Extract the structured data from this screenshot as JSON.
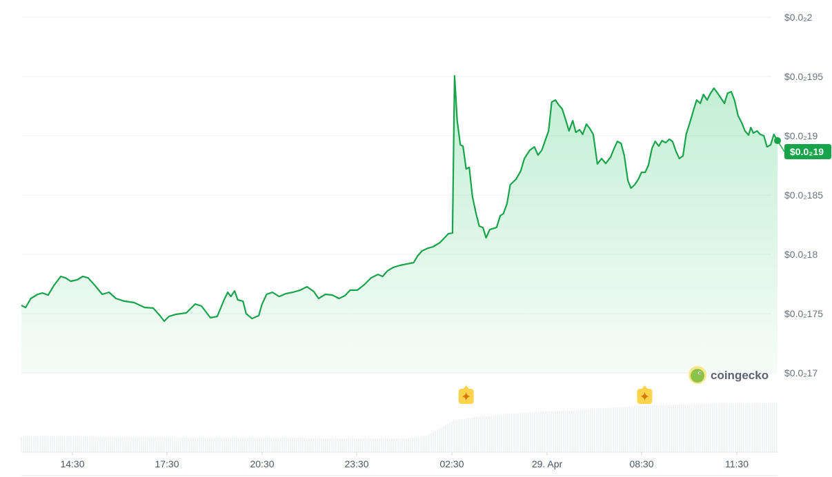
{
  "chart_data": {
    "type": "area",
    "title": "",
    "xlabel": "",
    "ylabel": "",
    "ylim": [
      0.0017,
      0.002
    ],
    "grid": true,
    "y_ticks": [
      {
        "value": 0.002,
        "label": "$0.0₂2"
      },
      {
        "value": 0.00195,
        "label": "$0.0₂195"
      },
      {
        "value": 0.0019,
        "label": "$0.0₂19"
      },
      {
        "value": 0.00185,
        "label": "$0.0₂185"
      },
      {
        "value": 0.0018,
        "label": "$0.0₂18"
      },
      {
        "value": 0.00175,
        "label": "$0.0₂175"
      },
      {
        "value": 0.0017,
        "label": "$0.0₂17"
      }
    ],
    "x_ticks": [
      "14:30",
      "17:30",
      "20:30",
      "23:30",
      "02:30",
      "29. Apr",
      "08:30",
      "11:30"
    ],
    "current_price_label": "$0.0₂19",
    "line_color": "#16a34a",
    "marker_color": "#fcd34d",
    "event_markers": [
      "03:00",
      "08:40"
    ],
    "series": [
      {
        "points": [
          [
            "12:53",
            0.001757
          ],
          [
            "13:01",
            0.0017552
          ],
          [
            "13:11",
            0.0017628
          ],
          [
            "13:24",
            0.0017663
          ],
          [
            "13:33",
            0.0017674
          ],
          [
            "13:44",
            0.0017657
          ],
          [
            "13:55",
            0.0017738
          ],
          [
            "14:08",
            0.0017814
          ],
          [
            "14:17",
            0.0017802
          ],
          [
            "14:27",
            0.0017773
          ],
          [
            "14:39",
            0.0017785
          ],
          [
            "14:50",
            0.0017814
          ],
          [
            "15:00",
            0.0017802
          ],
          [
            "15:13",
            0.0017738
          ],
          [
            "15:27",
            0.0017663
          ],
          [
            "15:40",
            0.001768
          ],
          [
            "15:53",
            0.0017628
          ],
          [
            "16:09",
            0.0017605
          ],
          [
            "16:28",
            0.0017593
          ],
          [
            "16:48",
            0.0017552
          ],
          [
            "17:04",
            0.0017547
          ],
          [
            "17:17",
            0.0017483
          ],
          [
            "17:25",
            0.0017436
          ],
          [
            "17:34",
            0.0017477
          ],
          [
            "17:47",
            0.0017494
          ],
          [
            "18:07",
            0.0017506
          ],
          [
            "18:24",
            0.0017581
          ],
          [
            "18:36",
            0.0017564
          ],
          [
            "18:53",
            0.0017465
          ],
          [
            "19:06",
            0.0017477
          ],
          [
            "19:19",
            0.0017616
          ],
          [
            "19:26",
            0.001768
          ],
          [
            "19:32",
            0.0017645
          ],
          [
            "19:39",
            0.0017692
          ],
          [
            "19:45",
            0.0017616
          ],
          [
            "19:55",
            0.0017605
          ],
          [
            "20:01",
            0.00175
          ],
          [
            "20:12",
            0.0017459
          ],
          [
            "20:25",
            0.0017483
          ],
          [
            "20:31",
            0.0017576
          ],
          [
            "20:40",
            0.0017663
          ],
          [
            "20:51",
            0.001768
          ],
          [
            "21:04",
            0.0017645
          ],
          [
            "21:17",
            0.0017669
          ],
          [
            "21:30",
            0.001768
          ],
          [
            "21:44",
            0.0017698
          ],
          [
            "21:57",
            0.0017727
          ],
          [
            "22:10",
            0.0017686
          ],
          [
            "22:19",
            0.0017628
          ],
          [
            "22:32",
            0.0017663
          ],
          [
            "22:45",
            0.0017657
          ],
          [
            "22:58",
            0.0017628
          ],
          [
            "23:09",
            0.0017651
          ],
          [
            "23:19",
            0.0017698
          ],
          [
            "23:33",
            0.0017698
          ],
          [
            "23:46",
            0.0017744
          ],
          [
            "23:59",
            0.0017802
          ],
          [
            "00:12",
            0.0017831
          ],
          [
            "00:21",
            0.0017814
          ],
          [
            "00:30",
            0.001786
          ],
          [
            "00:41",
            0.001789
          ],
          [
            "00:54",
            0.0017907
          ],
          [
            "01:07",
            0.0017919
          ],
          [
            "01:20",
            0.001793
          ],
          [
            "01:27",
            0.0017983
          ],
          [
            "01:36",
            0.0018029
          ],
          [
            "01:47",
            0.0018052
          ],
          [
            "01:57",
            0.0018064
          ],
          [
            "02:10",
            0.0018099
          ],
          [
            "02:20",
            0.0018145
          ],
          [
            "02:26",
            0.0018174
          ],
          [
            "02:34",
            0.001818
          ],
          [
            "02:38",
            0.0019506
          ],
          [
            "02:43",
            0.0019128
          ],
          [
            "02:49",
            0.0018924
          ],
          [
            "02:54",
            0.0018913
          ],
          [
            "03:00",
            0.0018721
          ],
          [
            "03:06",
            0.0018733
          ],
          [
            "03:12",
            0.0018488
          ],
          [
            "03:19",
            0.0018343
          ],
          [
            "03:25",
            0.0018238
          ],
          [
            "03:32",
            0.0018227
          ],
          [
            "03:38",
            0.001814
          ],
          [
            "03:45",
            0.0018209
          ],
          [
            "03:58",
            0.0018227
          ],
          [
            "04:05",
            0.0018326
          ],
          [
            "04:11",
            0.0018343
          ],
          [
            "04:18",
            0.001843
          ],
          [
            "04:24",
            0.0018587
          ],
          [
            "04:35",
            0.0018634
          ],
          [
            "04:44",
            0.0018703
          ],
          [
            "04:51",
            0.0018808
          ],
          [
            "05:01",
            0.0018878
          ],
          [
            "05:10",
            0.0018907
          ],
          [
            "05:17",
            0.0018837
          ],
          [
            "05:24",
            0.0018878
          ],
          [
            "05:30",
            0.0018953
          ],
          [
            "05:37",
            0.0019041
          ],
          [
            "05:43",
            0.0019285
          ],
          [
            "05:50",
            0.0019302
          ],
          [
            "05:56",
            0.0019262
          ],
          [
            "06:03",
            0.0019227
          ],
          [
            "06:10",
            0.0019128
          ],
          [
            "06:16",
            0.0019041
          ],
          [
            "06:23",
            0.0019128
          ],
          [
            "06:29",
            0.0019029
          ],
          [
            "06:36",
            0.0019052
          ],
          [
            "06:42",
            0.0019012
          ],
          [
            "06:49",
            0.0019099
          ],
          [
            "06:56",
            0.0019058
          ],
          [
            "07:02",
            0.0019012
          ],
          [
            "07:10",
            0.0018762
          ],
          [
            "07:18",
            0.0018808
          ],
          [
            "07:26",
            0.0018767
          ],
          [
            "07:35",
            0.001882
          ],
          [
            "07:42",
            0.0018895
          ],
          [
            "07:48",
            0.0018953
          ],
          [
            "07:55",
            0.0018936
          ],
          [
            "08:01",
            0.0018837
          ],
          [
            "08:08",
            0.0018622
          ],
          [
            "08:14",
            0.0018558
          ],
          [
            "08:21",
            0.0018587
          ],
          [
            "08:28",
            0.0018634
          ],
          [
            "08:34",
            0.0018692
          ],
          [
            "08:41",
            0.0018692
          ],
          [
            "08:47",
            0.001875
          ],
          [
            "08:54",
            0.0018895
          ],
          [
            "09:00",
            0.0018953
          ],
          [
            "09:07",
            0.0018913
          ],
          [
            "09:13",
            0.0018959
          ],
          [
            "09:20",
            0.0018942
          ],
          [
            "09:27",
            0.0018971
          ],
          [
            "09:33",
            0.0018953
          ],
          [
            "09:40",
            0.0018866
          ],
          [
            "09:46",
            0.0018808
          ],
          [
            "09:53",
            0.0018831
          ],
          [
            "09:59",
            0.0019012
          ],
          [
            "10:06",
            0.001911
          ],
          [
            "10:13",
            0.0019215
          ],
          [
            "10:19",
            0.0019302
          ],
          [
            "10:26",
            0.0019273
          ],
          [
            "10:32",
            0.0019349
          ],
          [
            "10:39",
            0.0019302
          ],
          [
            "10:45",
            0.0019355
          ],
          [
            "10:52",
            0.0019401
          ],
          [
            "10:59",
            0.001936
          ],
          [
            "11:05",
            0.001932
          ],
          [
            "11:12",
            0.0019273
          ],
          [
            "11:18",
            0.001936
          ],
          [
            "11:25",
            0.0019372
          ],
          [
            "11:31",
            0.0019302
          ],
          [
            "11:38",
            0.0019169
          ],
          [
            "11:45",
            0.001911
          ],
          [
            "11:51",
            0.0019041
          ],
          [
            "11:58",
            0.0019006
          ],
          [
            "12:02",
            0.001907
          ],
          [
            "12:07",
            0.0019023
          ],
          [
            "12:14",
            0.0019041
          ],
          [
            "12:20",
            0.0019012
          ],
          [
            "12:27",
            0.0019
          ],
          [
            "12:33",
            0.0018907
          ],
          [
            "12:40",
            0.0018924
          ],
          [
            "12:46",
            0.0019012
          ],
          [
            "12:53",
            0.0018959
          ]
        ]
      }
    ],
    "volume_relative": [
      0.27,
      0.27,
      0.27,
      0.26,
      0.26,
      0.26,
      0.25,
      0.25,
      0.25,
      0.25,
      0.25,
      0.24,
      0.24,
      0.24,
      0.23,
      0.27,
      0.55,
      0.62,
      0.66,
      0.7,
      0.72,
      0.75,
      0.78,
      0.81,
      0.83,
      0.84,
      0.85,
      0.85,
      0.86
    ]
  },
  "branding": {
    "logo_text": "coingecko"
  }
}
